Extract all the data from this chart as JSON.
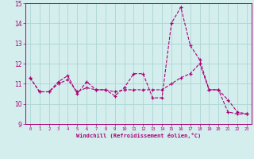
{
  "xlabel": "Windchill (Refroidissement éolien,°C)",
  "bg_color": "#d4eeed",
  "line_color": "#aa0077",
  "grid_color": "#b0d8d8",
  "xlim": [
    -0.5,
    23.5
  ],
  "ylim": [
    9,
    15
  ],
  "xticks": [
    0,
    1,
    2,
    3,
    4,
    5,
    6,
    7,
    8,
    9,
    10,
    11,
    12,
    13,
    14,
    15,
    16,
    17,
    18,
    19,
    20,
    21,
    22,
    23
  ],
  "yticks": [
    9,
    10,
    11,
    12,
    13,
    14,
    15
  ],
  "hours": [
    0,
    1,
    2,
    3,
    4,
    5,
    6,
    7,
    8,
    9,
    10,
    11,
    12,
    13,
    14,
    15,
    16,
    17,
    18,
    19,
    20,
    21,
    22,
    23
  ],
  "temp": [
    11.3,
    10.6,
    10.6,
    11.1,
    11.4,
    10.5,
    11.1,
    10.7,
    10.7,
    10.4,
    10.8,
    11.5,
    11.5,
    10.3,
    10.3,
    14.0,
    14.8,
    12.9,
    12.2,
    10.7,
    10.7,
    9.6,
    9.5,
    9.5
  ],
  "trend": [
    11.3,
    10.6,
    10.6,
    11.0,
    11.2,
    10.6,
    10.8,
    10.7,
    10.7,
    10.6,
    10.7,
    10.7,
    10.7,
    10.7,
    10.7,
    11.0,
    11.3,
    11.5,
    12.0,
    10.7,
    10.7,
    10.2,
    9.6,
    9.5
  ]
}
